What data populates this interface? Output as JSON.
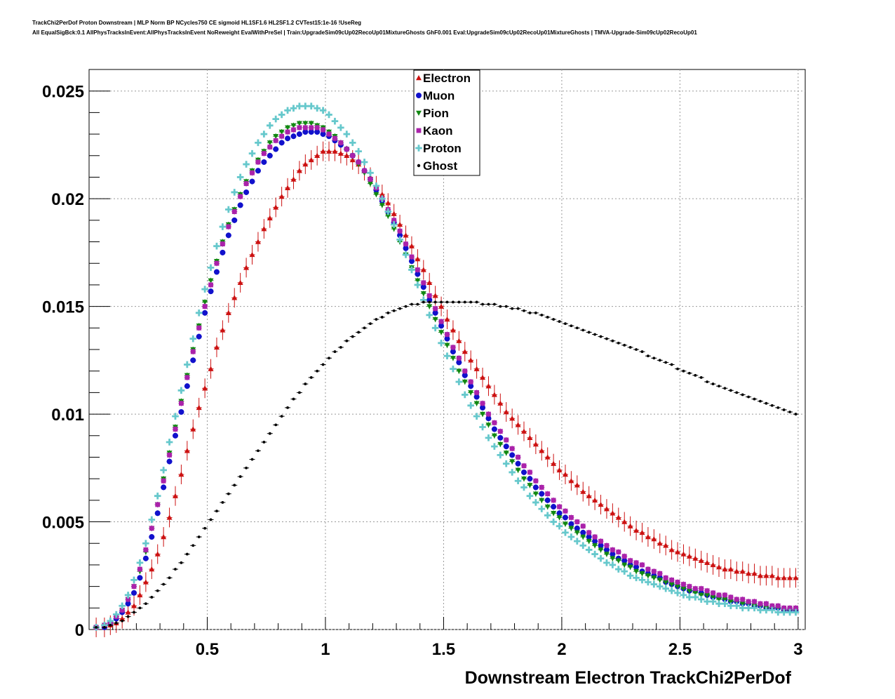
{
  "header": {
    "line1": "TrackChi2PerDof Proton Downstream | MLP Norm BP NCycles750 CE sigmoid HL1SF1.6 HL2SF1.2 CVTest15:1e-16 !UseReg",
    "line2": "All EqualSigBck:0.1 AllPhysTracksInEvent:AllPhysTracksInEvent NoReweight EvalWithPreSel | Train:UpgradeSim09cUp02RecoUp01MixtureGhosts GhF0.001 Eval:UpgradeSim09cUp02RecoUp01MixtureGhosts | TMVA-Upgrade-Sim09cUp02RecoUp01"
  },
  "colors": {
    "Electron": "#cc1111",
    "Muon": "#1111cc",
    "Pion": "#118811",
    "Kaon": "#aa22aa",
    "Proton": "#66c8cc",
    "Ghost": "#000000"
  },
  "chart_data": {
    "type": "scatter",
    "xlabel": "Downstream Electron TrackChi2PerDof",
    "ylabel": "",
    "xlim": [
      0.0,
      3.03
    ],
    "ylim": [
      0,
      0.026
    ],
    "xticks": [
      "0.5",
      "1",
      "1.5",
      "2",
      "2.5",
      "3"
    ],
    "yticks": [
      "0",
      "0.005",
      "0.01",
      "0.015",
      "0.02",
      "0.025"
    ],
    "grid": true,
    "legend_position": "top-center",
    "x": [
      0.03,
      0.065,
      0.09,
      0.115,
      0.14,
      0.165,
      0.19,
      0.215,
      0.24,
      0.265,
      0.29,
      0.315,
      0.34,
      0.365,
      0.39,
      0.415,
      0.44,
      0.465,
      0.49,
      0.515,
      0.54,
      0.565,
      0.59,
      0.615,
      0.64,
      0.665,
      0.69,
      0.715,
      0.74,
      0.765,
      0.79,
      0.815,
      0.84,
      0.865,
      0.89,
      0.915,
      0.94,
      0.965,
      0.99,
      1.015,
      1.04,
      1.065,
      1.09,
      1.115,
      1.14,
      1.165,
      1.19,
      1.215,
      1.24,
      1.265,
      1.29,
      1.315,
      1.34,
      1.365,
      1.39,
      1.415,
      1.44,
      1.465,
      1.49,
      1.515,
      1.54,
      1.565,
      1.59,
      1.615,
      1.64,
      1.665,
      1.69,
      1.715,
      1.74,
      1.765,
      1.79,
      1.815,
      1.84,
      1.865,
      1.89,
      1.915,
      1.94,
      1.965,
      1.99,
      2.015,
      2.04,
      2.065,
      2.09,
      2.115,
      2.14,
      2.165,
      2.19,
      2.215,
      2.24,
      2.265,
      2.29,
      2.315,
      2.34,
      2.365,
      2.39,
      2.415,
      2.44,
      2.465,
      2.49,
      2.515,
      2.54,
      2.565,
      2.59,
      2.615,
      2.64,
      2.665,
      2.69,
      2.715,
      2.74,
      2.765,
      2.79,
      2.815,
      2.84,
      2.865,
      2.89,
      2.915,
      2.94,
      2.965,
      2.99
    ],
    "series": [
      {
        "name": "Electron",
        "marker": "triangle-up",
        "values": [
          0.0001,
          0.0001,
          0.0002,
          0.0003,
          0.0005,
          0.0008,
          0.0011,
          0.0016,
          0.0022,
          0.0028,
          0.0035,
          0.0043,
          0.0052,
          0.0062,
          0.0072,
          0.0083,
          0.0093,
          0.0103,
          0.0112,
          0.0121,
          0.0131,
          0.0139,
          0.0147,
          0.0154,
          0.0161,
          0.0168,
          0.0174,
          0.018,
          0.0186,
          0.0191,
          0.0196,
          0.0201,
          0.0205,
          0.0209,
          0.0213,
          0.0216,
          0.0218,
          0.022,
          0.0222,
          0.0222,
          0.0222,
          0.0221,
          0.022,
          0.0218,
          0.0216,
          0.0213,
          0.021,
          0.0206,
          0.0202,
          0.0198,
          0.0193,
          0.0188,
          0.0183,
          0.0178,
          0.0172,
          0.0167,
          0.0161,
          0.0155,
          0.015,
          0.0144,
          0.0139,
          0.0134,
          0.0129,
          0.0125,
          0.0121,
          0.0117,
          0.0113,
          0.0109,
          0.0105,
          0.0101,
          0.0098,
          0.0095,
          0.0092,
          0.0089,
          0.0086,
          0.0083,
          0.008,
          0.0077,
          0.0074,
          0.0072,
          0.0069,
          0.0067,
          0.0064,
          0.0062,
          0.006,
          0.0058,
          0.0056,
          0.0054,
          0.0052,
          0.005,
          0.0048,
          0.0046,
          0.0045,
          0.0043,
          0.0042,
          0.004,
          0.0039,
          0.0037,
          0.0036,
          0.0035,
          0.0034,
          0.0033,
          0.0032,
          0.0031,
          0.003,
          0.0029,
          0.0028,
          0.0028,
          0.0027,
          0.0027,
          0.0026,
          0.0026,
          0.0025,
          0.0025,
          0.0025,
          0.0024,
          0.0024,
          0.0024,
          0.0024
        ]
      },
      {
        "name": "Muon",
        "marker": "circle",
        "values": [
          0.0001,
          0.0001,
          0.0003,
          0.0005,
          0.0008,
          0.0012,
          0.0017,
          0.0024,
          0.0033,
          0.0043,
          0.0054,
          0.0066,
          0.0078,
          0.009,
          0.0101,
          0.0113,
          0.0125,
          0.0136,
          0.0147,
          0.0157,
          0.0166,
          0.0175,
          0.0183,
          0.019,
          0.0197,
          0.0203,
          0.0208,
          0.0213,
          0.0217,
          0.022,
          0.0223,
          0.0226,
          0.0228,
          0.0229,
          0.023,
          0.0231,
          0.0231,
          0.0231,
          0.023,
          0.0229,
          0.0227,
          0.0225,
          0.0223,
          0.022,
          0.0217,
          0.0213,
          0.0209,
          0.0204,
          0.0199,
          0.0194,
          0.0189,
          0.0183,
          0.0177,
          0.0171,
          0.0165,
          0.0159,
          0.0153,
          0.0147,
          0.0141,
          0.0135,
          0.0129,
          0.0124,
          0.0118,
          0.0113,
          0.0108,
          0.0103,
          0.0098,
          0.0093,
          0.0089,
          0.0085,
          0.0081,
          0.0077,
          0.0073,
          0.007,
          0.0066,
          0.0063,
          0.006,
          0.0057,
          0.0054,
          0.0052,
          0.0049,
          0.0047,
          0.0045,
          0.0043,
          0.0041,
          0.0039,
          0.0037,
          0.0035,
          0.0033,
          0.0032,
          0.003,
          0.0029,
          0.0027,
          0.0026,
          0.0025,
          0.0024,
          0.0022,
          0.0021,
          0.002,
          0.0019,
          0.0018,
          0.0018,
          0.0017,
          0.0016,
          0.0015,
          0.0015,
          0.0014,
          0.0013,
          0.0013,
          0.0012,
          0.0012,
          0.0011,
          0.0011,
          0.001,
          0.001,
          0.001,
          0.0009,
          0.0009,
          0.0009
        ]
      },
      {
        "name": "Pion",
        "marker": "triangle-down",
        "values": [
          0.0001,
          0.0002,
          0.0003,
          0.0006,
          0.0009,
          0.0014,
          0.002,
          0.0027,
          0.0036,
          0.0047,
          0.0058,
          0.007,
          0.0082,
          0.0094,
          0.0106,
          0.0118,
          0.013,
          0.0141,
          0.0152,
          0.0162,
          0.0171,
          0.018,
          0.0188,
          0.0195,
          0.0202,
          0.0208,
          0.0213,
          0.0218,
          0.0222,
          0.0226,
          0.0229,
          0.0231,
          0.0233,
          0.0234,
          0.0235,
          0.0235,
          0.0235,
          0.0234,
          0.0233,
          0.0231,
          0.0229,
          0.0226,
          0.0223,
          0.022,
          0.0216,
          0.0212,
          0.0207,
          0.0202,
          0.0197,
          0.0192,
          0.0186,
          0.018,
          0.0174,
          0.0168,
          0.0162,
          0.0156,
          0.015,
          0.0144,
          0.0138,
          0.0132,
          0.0126,
          0.012,
          0.0115,
          0.011,
          0.0105,
          0.01,
          0.0095,
          0.009,
          0.0086,
          0.0082,
          0.0078,
          0.0074,
          0.007,
          0.0067,
          0.0063,
          0.006,
          0.0057,
          0.0054,
          0.0052,
          0.0049,
          0.0047,
          0.0045,
          0.0043,
          0.0041,
          0.0039,
          0.0037,
          0.0035,
          0.0033,
          0.0032,
          0.003,
          0.0029,
          0.0027,
          0.0026,
          0.0025,
          0.0024,
          0.0023,
          0.0022,
          0.0021,
          0.002,
          0.0019,
          0.0018,
          0.0017,
          0.0016,
          0.0016,
          0.0015,
          0.0014,
          0.0014,
          0.0013,
          0.0013,
          0.0012,
          0.0012,
          0.0011,
          0.0011,
          0.001,
          0.001,
          0.001,
          0.0009,
          0.0009,
          0.0009
        ]
      },
      {
        "name": "Kaon",
        "marker": "square",
        "values": [
          0.0001,
          0.0002,
          0.0003,
          0.0006,
          0.0009,
          0.0014,
          0.002,
          0.0028,
          0.0037,
          0.0047,
          0.0058,
          0.0069,
          0.0081,
          0.0093,
          0.0105,
          0.0117,
          0.0129,
          0.014,
          0.015,
          0.016,
          0.017,
          0.0179,
          0.0187,
          0.0194,
          0.0201,
          0.0207,
          0.0212,
          0.0217,
          0.0221,
          0.0224,
          0.0227,
          0.0229,
          0.0231,
          0.0232,
          0.0233,
          0.0233,
          0.0233,
          0.0233,
          0.0232,
          0.023,
          0.0228,
          0.0226,
          0.0223,
          0.022,
          0.0217,
          0.0213,
          0.0209,
          0.0205,
          0.02,
          0.0195,
          0.019,
          0.0185,
          0.0179,
          0.0173,
          0.0167,
          0.0161,
          0.0155,
          0.0149,
          0.0143,
          0.0137,
          0.0131,
          0.0126,
          0.012,
          0.0115,
          0.011,
          0.0105,
          0.01,
          0.0096,
          0.0092,
          0.0088,
          0.0084,
          0.008,
          0.0076,
          0.0073,
          0.0069,
          0.0066,
          0.0063,
          0.006,
          0.0057,
          0.0055,
          0.0052,
          0.005,
          0.0048,
          0.0045,
          0.0043,
          0.0041,
          0.0039,
          0.0037,
          0.0036,
          0.0034,
          0.0032,
          0.0031,
          0.003,
          0.0028,
          0.0027,
          0.0026,
          0.0024,
          0.0023,
          0.0022,
          0.0021,
          0.002,
          0.0019,
          0.0019,
          0.0018,
          0.0017,
          0.0016,
          0.0016,
          0.0015,
          0.0014,
          0.0014,
          0.0013,
          0.0013,
          0.0012,
          0.0012,
          0.0011,
          0.0011,
          0.001,
          0.001,
          0.001
        ]
      },
      {
        "name": "Proton",
        "marker": "cross",
        "values": [
          0.0001,
          0.0002,
          0.0004,
          0.0007,
          0.0011,
          0.0016,
          0.0023,
          0.0031,
          0.004,
          0.0051,
          0.0062,
          0.0074,
          0.0087,
          0.0099,
          0.0111,
          0.0123,
          0.0135,
          0.0147,
          0.0158,
          0.0168,
          0.0178,
          0.0187,
          0.0195,
          0.0203,
          0.021,
          0.0216,
          0.0221,
          0.0226,
          0.023,
          0.0234,
          0.0237,
          0.0239,
          0.0241,
          0.0242,
          0.0243,
          0.0243,
          0.0243,
          0.0242,
          0.0241,
          0.0239,
          0.0236,
          0.0233,
          0.023,
          0.0226,
          0.0222,
          0.0217,
          0.0212,
          0.0206,
          0.02,
          0.0194,
          0.0188,
          0.0181,
          0.0174,
          0.0167,
          0.016,
          0.0153,
          0.0146,
          0.014,
          0.0133,
          0.0127,
          0.0121,
          0.0115,
          0.0109,
          0.0104,
          0.0099,
          0.0094,
          0.0089,
          0.0085,
          0.0081,
          0.0077,
          0.0073,
          0.0069,
          0.0066,
          0.0062,
          0.0059,
          0.0056,
          0.0053,
          0.005,
          0.0048,
          0.0045,
          0.0043,
          0.0041,
          0.0039,
          0.0037,
          0.0035,
          0.0033,
          0.0031,
          0.003,
          0.0028,
          0.0027,
          0.0025,
          0.0024,
          0.0023,
          0.0022,
          0.0021,
          0.002,
          0.0019,
          0.0018,
          0.0017,
          0.0016,
          0.0015,
          0.0015,
          0.0014,
          0.0013,
          0.0013,
          0.0012,
          0.0012,
          0.0011,
          0.0011,
          0.001,
          0.001,
          0.001,
          0.0009,
          0.0009,
          0.0009,
          0.0008,
          0.0008,
          0.0008,
          0.0008
        ]
      },
      {
        "name": "Ghost",
        "marker": "dot",
        "values": [
          0.0001,
          0.0001,
          0.0002,
          0.0003,
          0.0004,
          0.0006,
          0.0008,
          0.001,
          0.0012,
          0.0015,
          0.0018,
          0.0021,
          0.0024,
          0.0028,
          0.0031,
          0.0035,
          0.0039,
          0.0043,
          0.0047,
          0.0051,
          0.0055,
          0.0059,
          0.0063,
          0.0067,
          0.0071,
          0.0075,
          0.0079,
          0.0083,
          0.0087,
          0.0091,
          0.0095,
          0.0099,
          0.0103,
          0.0107,
          0.011,
          0.0114,
          0.0117,
          0.012,
          0.0123,
          0.0126,
          0.0129,
          0.0131,
          0.0134,
          0.0136,
          0.0138,
          0.014,
          0.0142,
          0.0144,
          0.0145,
          0.0147,
          0.0148,
          0.0149,
          0.015,
          0.0151,
          0.0151,
          0.0152,
          0.0152,
          0.0152,
          0.0152,
          0.0152,
          0.0152,
          0.0152,
          0.0152,
          0.0152,
          0.0152,
          0.0151,
          0.0151,
          0.0151,
          0.015,
          0.015,
          0.0149,
          0.0149,
          0.0148,
          0.0147,
          0.0147,
          0.0146,
          0.0145,
          0.0144,
          0.0143,
          0.0142,
          0.0141,
          0.014,
          0.0139,
          0.0138,
          0.0137,
          0.0136,
          0.0135,
          0.0134,
          0.0133,
          0.0132,
          0.0131,
          0.013,
          0.0129,
          0.0127,
          0.0126,
          0.0125,
          0.0124,
          0.0123,
          0.0121,
          0.012,
          0.0119,
          0.0118,
          0.0117,
          0.0115,
          0.0114,
          0.0113,
          0.0112,
          0.0111,
          0.011,
          0.0109,
          0.0108,
          0.0107,
          0.0106,
          0.0105,
          0.0104,
          0.0103,
          0.0102,
          0.0101,
          0.01
        ]
      }
    ]
  }
}
